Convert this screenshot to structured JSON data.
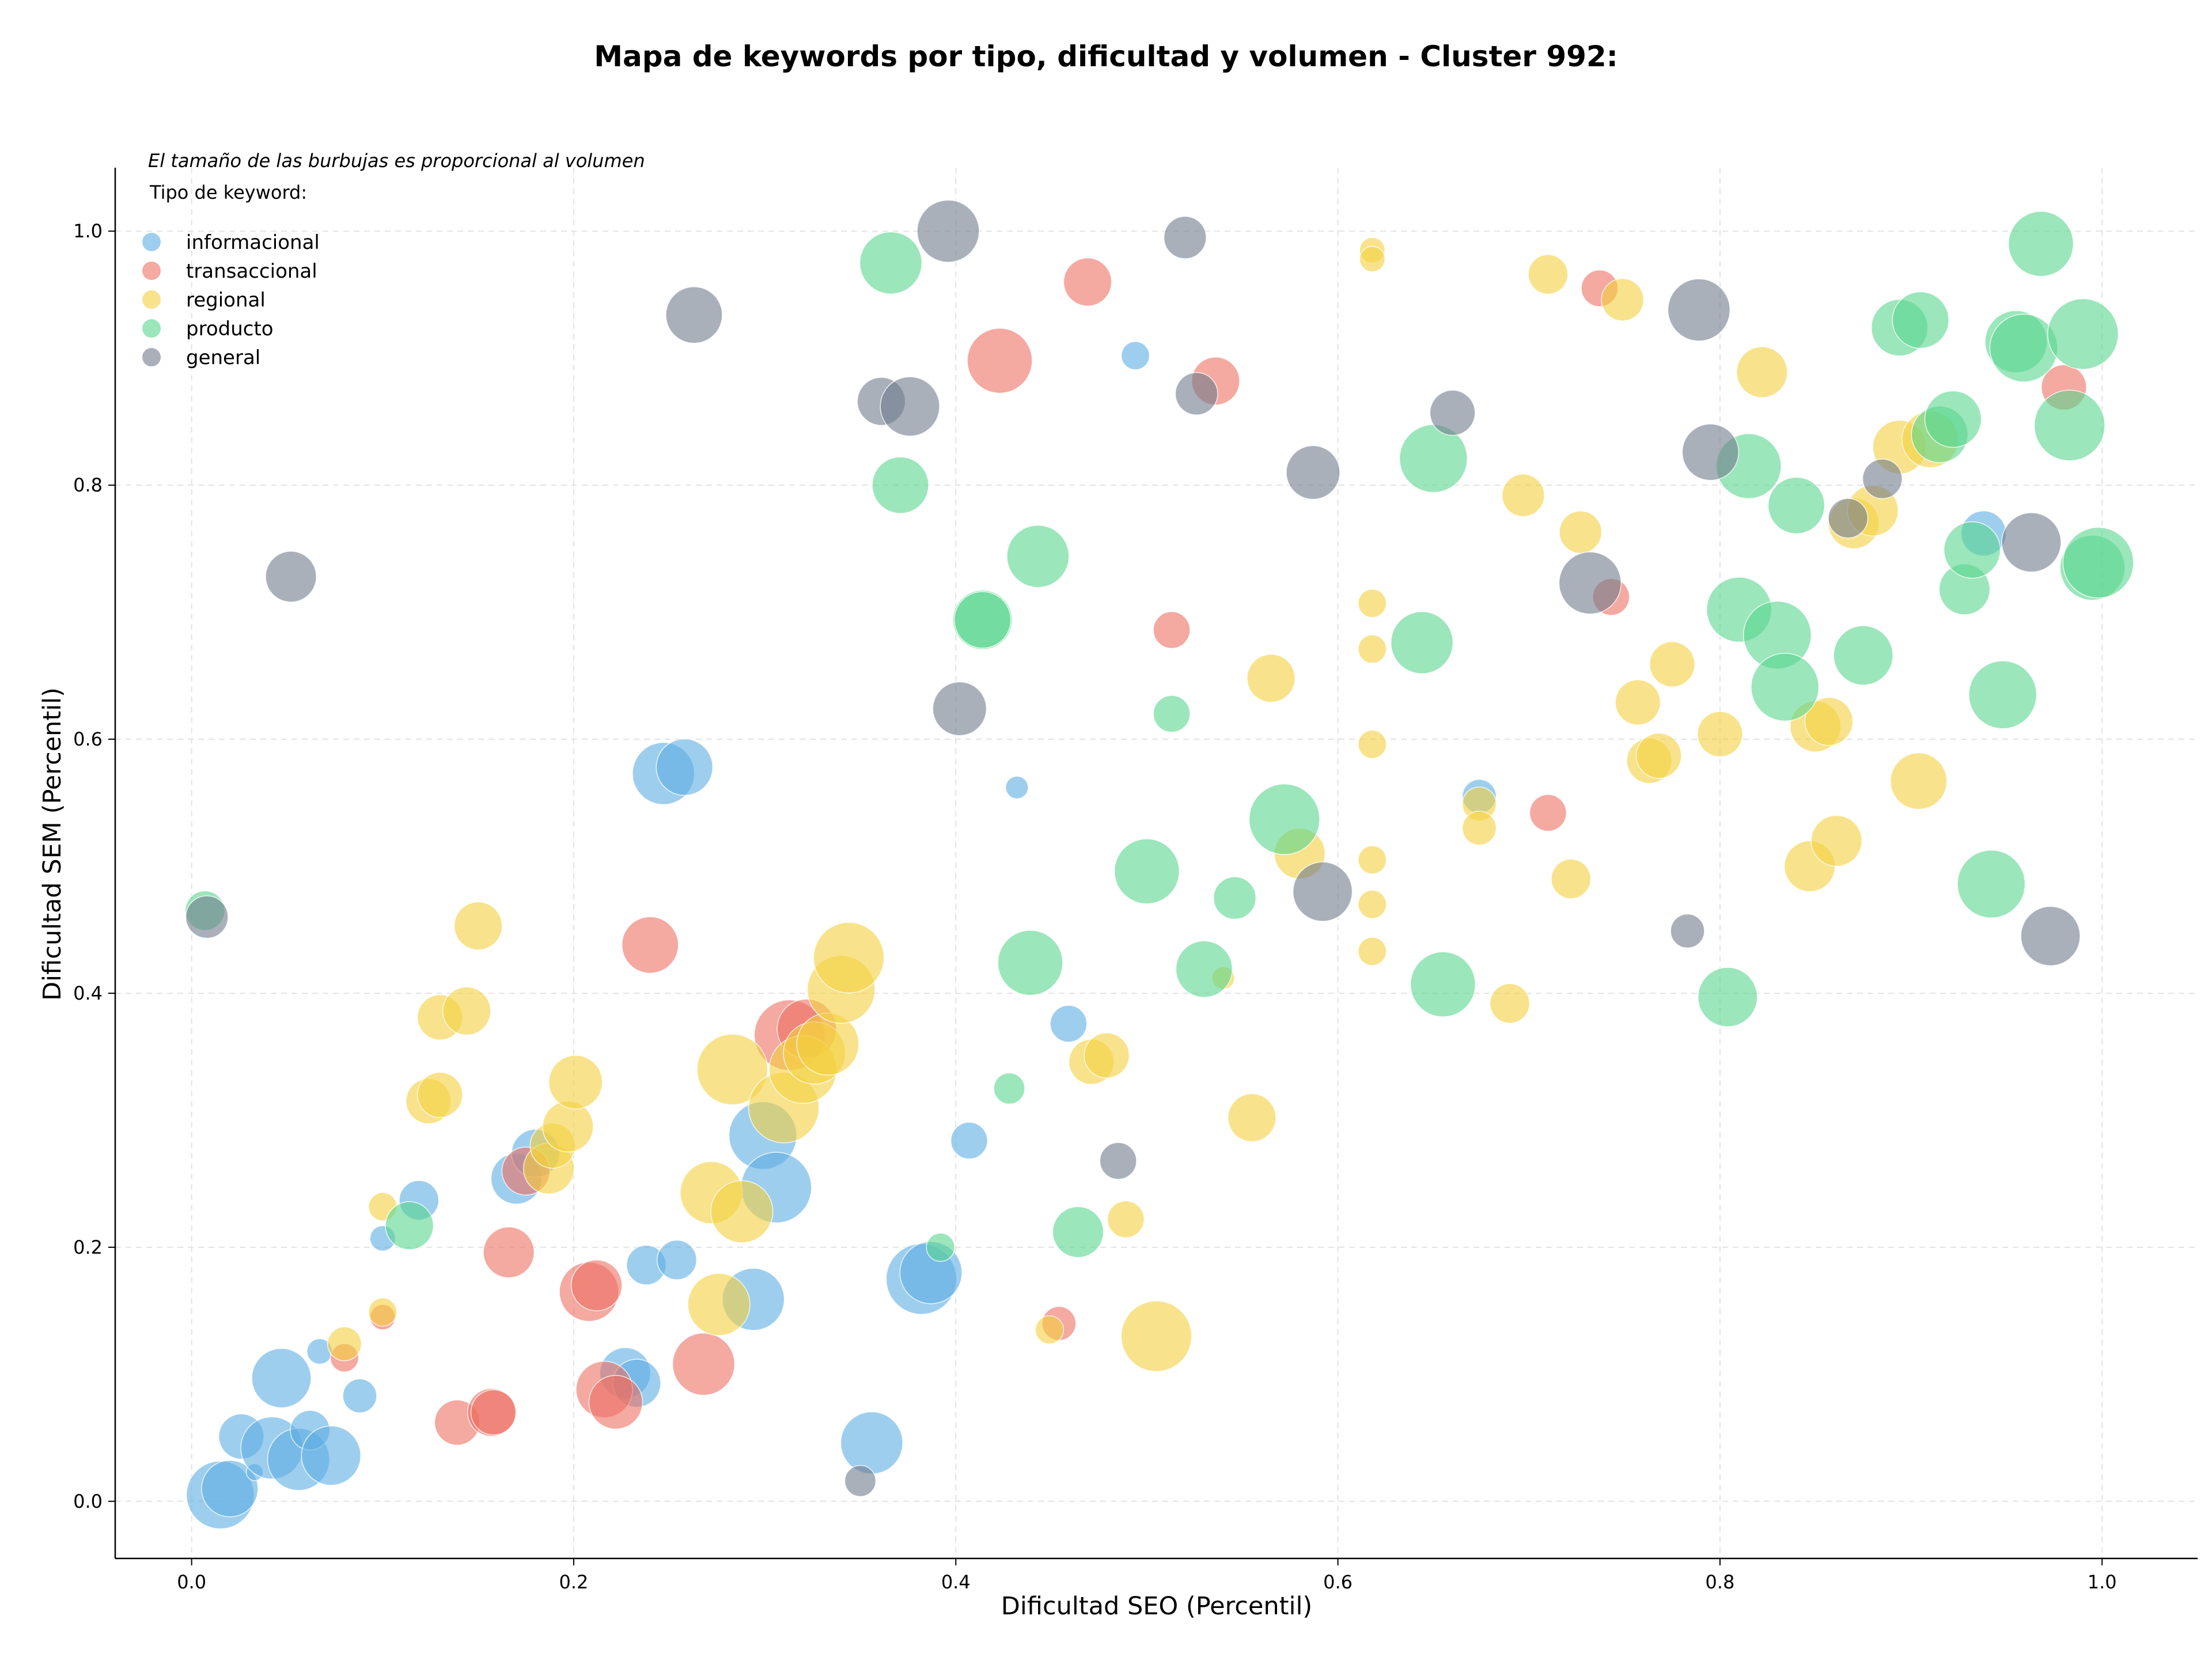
{
  "chart_data": {
    "type": "scatter",
    "title": "Mapa de keywords por tipo, dificultad y volumen - Cluster 992:",
    "xlabel": "Dificultad SEO (Percentil)",
    "ylabel": "Dificultad SEM (Percentil)",
    "xlim": [
      -0.04,
      1.05
    ],
    "ylim": [
      -0.045,
      1.05
    ],
    "xticks": [
      "0.0",
      "0.2",
      "0.4",
      "0.6",
      "0.8",
      "1.0"
    ],
    "yticks": [
      "0.0",
      "0.2",
      "0.4",
      "0.6",
      "0.8",
      "1.0"
    ],
    "grid": true,
    "legend": {
      "note": "El tamaño de las burbujas es proporcional al volumen",
      "title": "Tipo de keyword:",
      "position": "top-left"
    },
    "series": [
      {
        "name": "informacional",
        "color": "#5dade2",
        "points": [
          {
            "x": 0.015,
            "y": 0.005,
            "r": 24
          },
          {
            "x": 0.02,
            "y": 0.01,
            "r": 20
          },
          {
            "x": 0.033,
            "y": 0.023,
            "r": 6
          },
          {
            "x": 0.026,
            "y": 0.051,
            "r": 16
          },
          {
            "x": 0.042,
            "y": 0.042,
            "r": 22
          },
          {
            "x": 0.047,
            "y": 0.097,
            "r": 21
          },
          {
            "x": 0.056,
            "y": 0.033,
            "r": 22
          },
          {
            "x": 0.062,
            "y": 0.056,
            "r": 14
          },
          {
            "x": 0.067,
            "y": 0.118,
            "r": 9
          },
          {
            "x": 0.073,
            "y": 0.036,
            "r": 21
          },
          {
            "x": 0.088,
            "y": 0.083,
            "r": 12
          },
          {
            "x": 0.1,
            "y": 0.207,
            "r": 9
          },
          {
            "x": 0.119,
            "y": 0.237,
            "r": 14
          },
          {
            "x": 0.17,
            "y": 0.254,
            "r": 18
          },
          {
            "x": 0.18,
            "y": 0.274,
            "r": 17
          },
          {
            "x": 0.227,
            "y": 0.101,
            "r": 18
          },
          {
            "x": 0.233,
            "y": 0.093,
            "r": 17
          },
          {
            "x": 0.238,
            "y": 0.186,
            "r": 14
          },
          {
            "x": 0.254,
            "y": 0.19,
            "r": 14
          },
          {
            "x": 0.247,
            "y": 0.573,
            "r": 22
          },
          {
            "x": 0.258,
            "y": 0.578,
            "r": 20
          },
          {
            "x": 0.294,
            "y": 0.159,
            "r": 22
          },
          {
            "x": 0.299,
            "y": 0.288,
            "r": 24
          },
          {
            "x": 0.306,
            "y": 0.247,
            "r": 25
          },
          {
            "x": 0.356,
            "y": 0.046,
            "r": 22
          },
          {
            "x": 0.382,
            "y": 0.175,
            "r": 25
          },
          {
            "x": 0.387,
            "y": 0.18,
            "r": 22
          },
          {
            "x": 0.407,
            "y": 0.284,
            "r": 13
          },
          {
            "x": 0.432,
            "y": 0.562,
            "r": 8
          },
          {
            "x": 0.459,
            "y": 0.376,
            "r": 13
          },
          {
            "x": 0.494,
            "y": 0.902,
            "r": 10
          },
          {
            "x": 0.674,
            "y": 0.555,
            "r": 12
          },
          {
            "x": 0.938,
            "y": 0.762,
            "r": 16
          }
        ]
      },
      {
        "name": "transaccional",
        "color": "#ec7063",
        "points": [
          {
            "x": 0.08,
            "y": 0.113,
            "r": 10
          },
          {
            "x": 0.1,
            "y": 0.145,
            "r": 9
          },
          {
            "x": 0.139,
            "y": 0.062,
            "r": 16
          },
          {
            "x": 0.157,
            "y": 0.07,
            "r": 17
          },
          {
            "x": 0.158,
            "y": 0.07,
            "r": 16
          },
          {
            "x": 0.166,
            "y": 0.196,
            "r": 18
          },
          {
            "x": 0.175,
            "y": 0.26,
            "r": 17
          },
          {
            "x": 0.208,
            "y": 0.165,
            "r": 21
          },
          {
            "x": 0.212,
            "y": 0.17,
            "r": 18
          },
          {
            "x": 0.216,
            "y": 0.088,
            "r": 20
          },
          {
            "x": 0.222,
            "y": 0.078,
            "r": 19
          },
          {
            "x": 0.24,
            "y": 0.438,
            "r": 20
          },
          {
            "x": 0.268,
            "y": 0.108,
            "r": 22
          },
          {
            "x": 0.313,
            "y": 0.367,
            "r": 25
          },
          {
            "x": 0.322,
            "y": 0.372,
            "r": 21
          },
          {
            "x": 0.423,
            "y": 0.898,
            "r": 23
          },
          {
            "x": 0.469,
            "y": 0.96,
            "r": 17
          },
          {
            "x": 0.454,
            "y": 0.14,
            "r": 12
          },
          {
            "x": 0.513,
            "y": 0.686,
            "r": 13
          },
          {
            "x": 0.536,
            "y": 0.882,
            "r": 17
          },
          {
            "x": 0.71,
            "y": 0.542,
            "r": 13
          },
          {
            "x": 0.737,
            "y": 0.955,
            "r": 13
          },
          {
            "x": 0.743,
            "y": 0.712,
            "r": 13
          },
          {
            "x": 0.98,
            "y": 0.877,
            "r": 16
          }
        ]
      },
      {
        "name": "regional",
        "color": "#f4d03f",
        "points": [
          {
            "x": 0.08,
            "y": 0.124,
            "r": 12
          },
          {
            "x": 0.1,
            "y": 0.149,
            "r": 10
          },
          {
            "x": 0.1,
            "y": 0.232,
            "r": 10
          },
          {
            "x": 0.124,
            "y": 0.315,
            "r": 16
          },
          {
            "x": 0.13,
            "y": 0.32,
            "r": 16
          },
          {
            "x": 0.13,
            "y": 0.381,
            "r": 16
          },
          {
            "x": 0.144,
            "y": 0.386,
            "r": 17
          },
          {
            "x": 0.15,
            "y": 0.453,
            "r": 17
          },
          {
            "x": 0.187,
            "y": 0.262,
            "r": 18
          },
          {
            "x": 0.189,
            "y": 0.28,
            "r": 16
          },
          {
            "x": 0.197,
            "y": 0.295,
            "r": 18
          },
          {
            "x": 0.201,
            "y": 0.33,
            "r": 19
          },
          {
            "x": 0.272,
            "y": 0.243,
            "r": 22
          },
          {
            "x": 0.276,
            "y": 0.155,
            "r": 22
          },
          {
            "x": 0.283,
            "y": 0.34,
            "r": 25
          },
          {
            "x": 0.288,
            "y": 0.228,
            "r": 22
          },
          {
            "x": 0.31,
            "y": 0.31,
            "r": 25
          },
          {
            "x": 0.32,
            "y": 0.34,
            "r": 24
          },
          {
            "x": 0.326,
            "y": 0.353,
            "r": 22
          },
          {
            "x": 0.333,
            "y": 0.36,
            "r": 22
          },
          {
            "x": 0.34,
            "y": 0.403,
            "r": 24
          },
          {
            "x": 0.344,
            "y": 0.428,
            "r": 25
          },
          {
            "x": 0.449,
            "y": 0.135,
            "r": 10
          },
          {
            "x": 0.471,
            "y": 0.346,
            "r": 16
          },
          {
            "x": 0.479,
            "y": 0.351,
            "r": 16
          },
          {
            "x": 0.489,
            "y": 0.222,
            "r": 13
          },
          {
            "x": 0.505,
            "y": 0.13,
            "r": 25
          },
          {
            "x": 0.54,
            "y": 0.412,
            "r": 8
          },
          {
            "x": 0.555,
            "y": 0.302,
            "r": 17
          },
          {
            "x": 0.565,
            "y": 0.648,
            "r": 17
          },
          {
            "x": 0.58,
            "y": 0.51,
            "r": 18
          },
          {
            "x": 0.618,
            "y": 0.985,
            "r": 9
          },
          {
            "x": 0.618,
            "y": 0.978,
            "r": 9
          },
          {
            "x": 0.618,
            "y": 0.707,
            "r": 10
          },
          {
            "x": 0.618,
            "y": 0.671,
            "r": 10
          },
          {
            "x": 0.618,
            "y": 0.596,
            "r": 10
          },
          {
            "x": 0.618,
            "y": 0.505,
            "r": 10
          },
          {
            "x": 0.618,
            "y": 0.47,
            "r": 10
          },
          {
            "x": 0.618,
            "y": 0.433,
            "r": 10
          },
          {
            "x": 0.674,
            "y": 0.549,
            "r": 12
          },
          {
            "x": 0.674,
            "y": 0.53,
            "r": 12
          },
          {
            "x": 0.69,
            "y": 0.392,
            "r": 14
          },
          {
            "x": 0.697,
            "y": 0.792,
            "r": 15
          },
          {
            "x": 0.71,
            "y": 0.966,
            "r": 14
          },
          {
            "x": 0.722,
            "y": 0.49,
            "r": 14
          },
          {
            "x": 0.727,
            "y": 0.763,
            "r": 15
          },
          {
            "x": 0.749,
            "y": 0.946,
            "r": 15
          },
          {
            "x": 0.757,
            "y": 0.629,
            "r": 16
          },
          {
            "x": 0.763,
            "y": 0.583,
            "r": 16
          },
          {
            "x": 0.768,
            "y": 0.587,
            "r": 16
          },
          {
            "x": 0.775,
            "y": 0.659,
            "r": 16
          },
          {
            "x": 0.8,
            "y": 0.604,
            "r": 16
          },
          {
            "x": 0.822,
            "y": 0.889,
            "r": 18
          },
          {
            "x": 0.847,
            "y": 0.5,
            "r": 18
          },
          {
            "x": 0.85,
            "y": 0.61,
            "r": 18
          },
          {
            "x": 0.857,
            "y": 0.614,
            "r": 17
          },
          {
            "x": 0.861,
            "y": 0.52,
            "r": 18
          },
          {
            "x": 0.87,
            "y": 0.77,
            "r": 18
          },
          {
            "x": 0.88,
            "y": 0.78,
            "r": 18
          },
          {
            "x": 0.894,
            "y": 0.83,
            "r": 19
          },
          {
            "x": 0.904,
            "y": 0.567,
            "r": 20
          },
          {
            "x": 0.91,
            "y": 0.836,
            "r": 20
          }
        ]
      },
      {
        "name": "producto",
        "color": "#58d68d",
        "points": [
          {
            "x": 0.007,
            "y": 0.465,
            "r": 14
          },
          {
            "x": 0.114,
            "y": 0.217,
            "r": 17
          },
          {
            "x": 0.366,
            "y": 0.975,
            "r": 22
          },
          {
            "x": 0.371,
            "y": 0.8,
            "r": 20
          },
          {
            "x": 0.392,
            "y": 0.2,
            "r": 10
          },
          {
            "x": 0.414,
            "y": 0.694,
            "r": 21
          },
          {
            "x": 0.414,
            "y": 0.694,
            "r": 20
          },
          {
            "x": 0.428,
            "y": 0.325,
            "r": 11
          },
          {
            "x": 0.439,
            "y": 0.424,
            "r": 23
          },
          {
            "x": 0.443,
            "y": 0.744,
            "r": 22
          },
          {
            "x": 0.464,
            "y": 0.212,
            "r": 18
          },
          {
            "x": 0.5,
            "y": 0.496,
            "r": 23
          },
          {
            "x": 0.513,
            "y": 0.62,
            "r": 13
          },
          {
            "x": 0.53,
            "y": 0.419,
            "r": 20
          },
          {
            "x": 0.546,
            "y": 0.475,
            "r": 15
          },
          {
            "x": 0.572,
            "y": 0.537,
            "r": 25
          },
          {
            "x": 0.644,
            "y": 0.676,
            "r": 22
          },
          {
            "x": 0.65,
            "y": 0.821,
            "r": 24
          },
          {
            "x": 0.655,
            "y": 0.407,
            "r": 23
          },
          {
            "x": 0.804,
            "y": 0.397,
            "r": 21
          },
          {
            "x": 0.81,
            "y": 0.702,
            "r": 23
          },
          {
            "x": 0.815,
            "y": 0.815,
            "r": 23
          },
          {
            "x": 0.83,
            "y": 0.682,
            "r": 24
          },
          {
            "x": 0.834,
            "y": 0.641,
            "r": 24
          },
          {
            "x": 0.84,
            "y": 0.784,
            "r": 20
          },
          {
            "x": 0.875,
            "y": 0.666,
            "r": 21
          },
          {
            "x": 0.894,
            "y": 0.924,
            "r": 20
          },
          {
            "x": 0.905,
            "y": 0.93,
            "r": 20
          },
          {
            "x": 0.915,
            "y": 0.84,
            "r": 20
          },
          {
            "x": 0.922,
            "y": 0.852,
            "r": 20
          },
          {
            "x": 0.928,
            "y": 0.718,
            "r": 18
          },
          {
            "x": 0.932,
            "y": 0.749,
            "r": 20
          },
          {
            "x": 0.942,
            "y": 0.486,
            "r": 24
          },
          {
            "x": 0.948,
            "y": 0.635,
            "r": 24
          },
          {
            "x": 0.955,
            "y": 0.913,
            "r": 22
          },
          {
            "x": 0.959,
            "y": 0.908,
            "r": 24
          },
          {
            "x": 0.968,
            "y": 0.99,
            "r": 23
          },
          {
            "x": 0.983,
            "y": 0.847,
            "r": 25
          },
          {
            "x": 0.99,
            "y": 0.919,
            "r": 25
          },
          {
            "x": 0.995,
            "y": 0.735,
            "r": 23
          },
          {
            "x": 0.998,
            "y": 0.739,
            "r": 25
          }
        ]
      },
      {
        "name": "general",
        "color": "#707b8c",
        "points": [
          {
            "x": 0.008,
            "y": 0.46,
            "r": 15
          },
          {
            "x": 0.052,
            "y": 0.728,
            "r": 18
          },
          {
            "x": 0.263,
            "y": 0.934,
            "r": 20
          },
          {
            "x": 0.35,
            "y": 0.016,
            "r": 11
          },
          {
            "x": 0.361,
            "y": 0.866,
            "r": 17
          },
          {
            "x": 0.376,
            "y": 0.862,
            "r": 21
          },
          {
            "x": 0.396,
            "y": 1.0,
            "r": 22
          },
          {
            "x": 0.402,
            "y": 0.624,
            "r": 19
          },
          {
            "x": 0.485,
            "y": 0.268,
            "r": 13
          },
          {
            "x": 0.52,
            "y": 0.995,
            "r": 15
          },
          {
            "x": 0.526,
            "y": 0.872,
            "r": 15
          },
          {
            "x": 0.587,
            "y": 0.81,
            "r": 19
          },
          {
            "x": 0.592,
            "y": 0.48,
            "r": 21
          },
          {
            "x": 0.66,
            "y": 0.857,
            "r": 16
          },
          {
            "x": 0.732,
            "y": 0.723,
            "r": 22
          },
          {
            "x": 0.783,
            "y": 0.449,
            "r": 12
          },
          {
            "x": 0.789,
            "y": 0.938,
            "r": 22
          },
          {
            "x": 0.795,
            "y": 0.826,
            "r": 20
          },
          {
            "x": 0.867,
            "y": 0.774,
            "r": 14
          },
          {
            "x": 0.885,
            "y": 0.805,
            "r": 14
          },
          {
            "x": 0.963,
            "y": 0.755,
            "r": 21
          },
          {
            "x": 0.973,
            "y": 0.445,
            "r": 21
          }
        ]
      }
    ]
  }
}
